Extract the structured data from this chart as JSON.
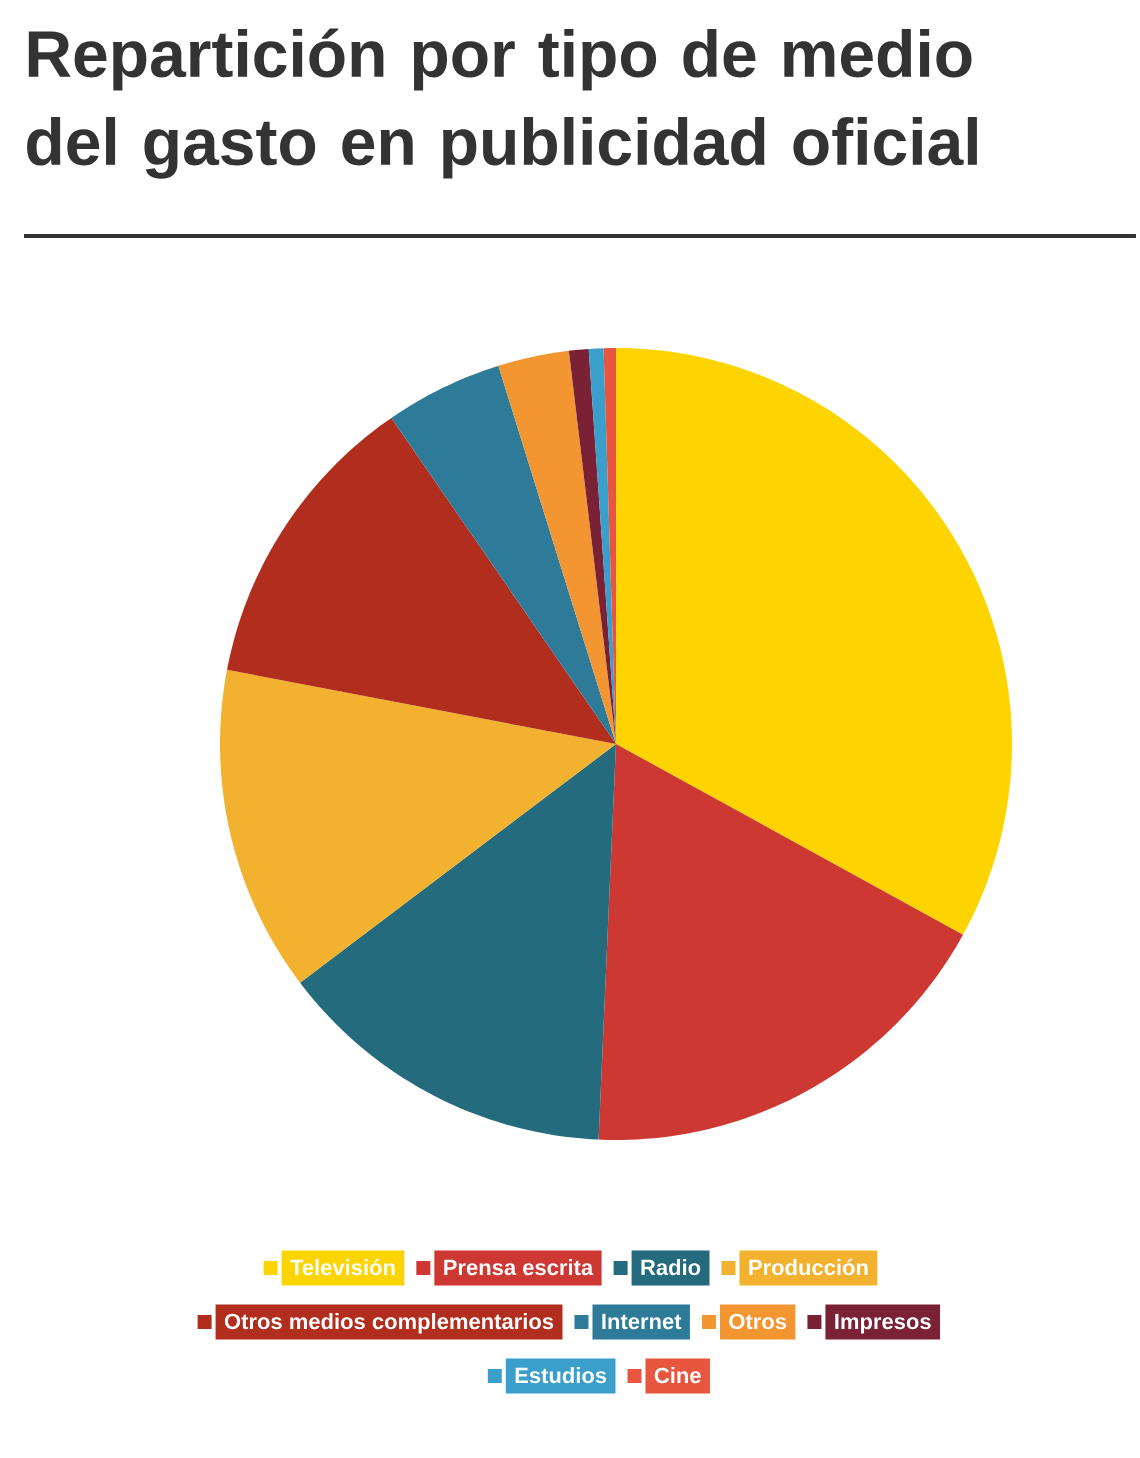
{
  "chart_data": {
    "type": "pie",
    "title": "Repartición por tipo de medio del gasto en publicidad oficial",
    "categories": [
      "Televisión",
      "Prensa escrita",
      "Radio",
      "Producción",
      "Otros medios complementarios",
      "Internet",
      "Otros",
      "Impresos",
      "Estudios",
      "Cine"
    ],
    "values": [
      33.0,
      17.7,
      14.0,
      13.3,
      12.4,
      4.8,
      2.9,
      0.8,
      0.6,
      0.5
    ],
    "colors": [
      "#fdd400",
      "#cd3832",
      "#256b7e",
      "#f2b22f",
      "#b12e1e",
      "#2e7b99",
      "#f39530",
      "#7b2135",
      "#3a9fca",
      "#e9563f"
    ],
    "legend": "bottom"
  }
}
